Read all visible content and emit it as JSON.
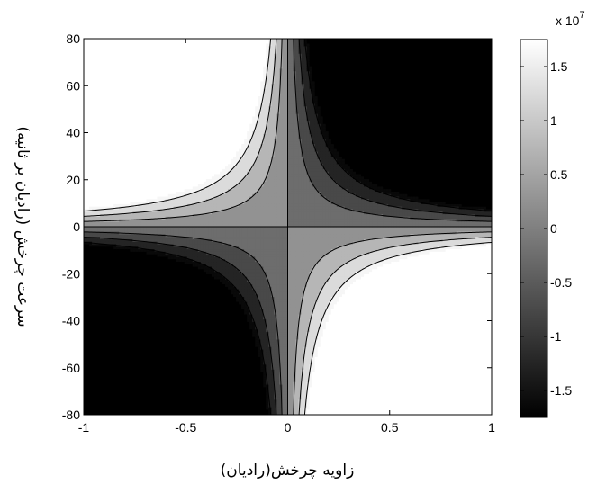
{
  "chart_data": {
    "type": "heatmap",
    "subtype": "filled-contour",
    "xlabel": "زاویه چرخش(رادیان)",
    "ylabel": "سرعت چرخش (رادیان بر ثانیه)",
    "xlim": [
      -1,
      1
    ],
    "ylim": [
      -80,
      80
    ],
    "x_ticks": [
      "-1",
      "-0.5",
      "0",
      "0.5",
      "1"
    ],
    "y_ticks": [
      "80",
      "60",
      "40",
      "20",
      "0",
      "-20",
      "-40",
      "-60",
      "-80"
    ],
    "z_function": "z = -k * x * y",
    "z_scale": 10000000.0,
    "k": 2250000,
    "contour_levels": [
      -15000000.0,
      -10000000.0,
      -5000000.0,
      0,
      5000000.0,
      10000000.0,
      15000000.0
    ],
    "colorbar": {
      "range": [
        -17500000.0,
        17500000.0
      ],
      "ticks": [
        "1.5",
        "1",
        "0.5",
        "0",
        "-0.5",
        "-1",
        "-1.5"
      ],
      "exponent_label": "x 10",
      "exponent_power": "7",
      "colormap": "gray"
    },
    "grid": false
  }
}
